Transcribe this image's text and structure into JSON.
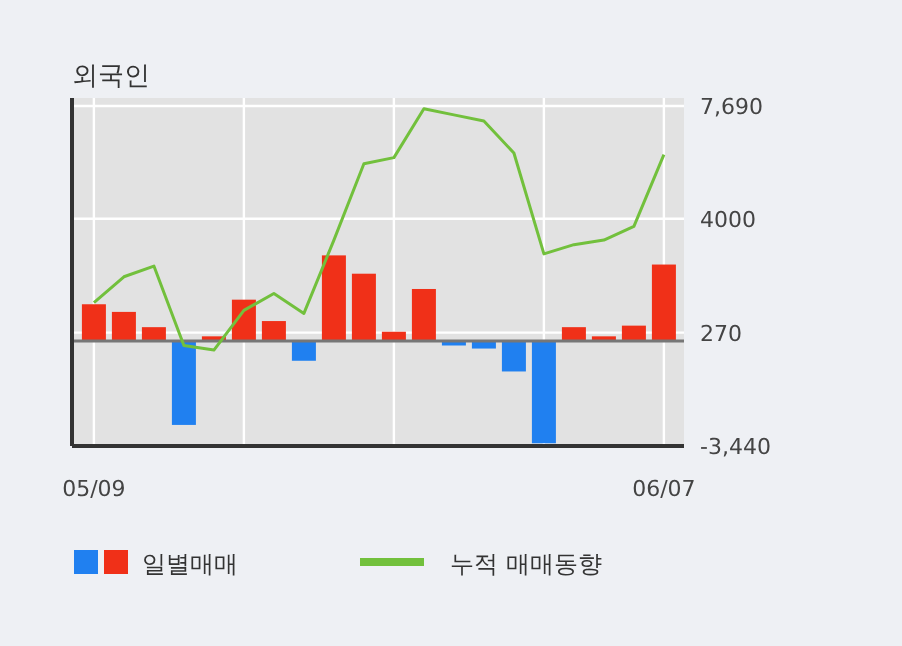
{
  "chart_data": {
    "type": "bar",
    "title": "외국인",
    "categories": [
      "05/09",
      null,
      null,
      null,
      null,
      null,
      null,
      null,
      null,
      null,
      null,
      null,
      null,
      null,
      null,
      null,
      null,
      null,
      null,
      "06/07"
    ],
    "series": [
      {
        "name": "일별매매",
        "colors": [
          "#f03018",
          "#f03018",
          "#f03018",
          "#2080f0",
          "#f03018",
          "#f03018",
          "#f03018",
          "#2080f0",
          "#f03018",
          "#f03018",
          "#f03018",
          "#f03018",
          "#2080f0",
          "#2080f0",
          "#2080f0",
          "#2080f0",
          "#f03018",
          "#f03018",
          "#f03018",
          "#f03018"
        ],
        "values": [
          1200,
          950,
          450,
          -2750,
          150,
          1350,
          650,
          -650,
          2800,
          2200,
          300,
          1700,
          -150,
          -250,
          -1000,
          -3350,
          450,
          150,
          500,
          2500
        ]
      },
      {
        "name": "누적 매매동향",
        "type": "line",
        "color": "#72c03c",
        "values": [
          1250,
          2100,
          2450,
          -150,
          -300,
          1000,
          1550,
          900,
          3300,
          5800,
          6000,
          7600,
          7400,
          7200,
          6150,
          2850,
          3150,
          3300,
          3750,
          6100
        ]
      }
    ],
    "ylim": [
      -3440,
      7690
    ],
    "yticks": [
      {
        "value": 7690,
        "label": "7,690"
      },
      4000,
      270,
      {
        "value": -3440,
        "label": "-3,440"
      }
    ],
    "grid": true,
    "legend": "bottom"
  }
}
